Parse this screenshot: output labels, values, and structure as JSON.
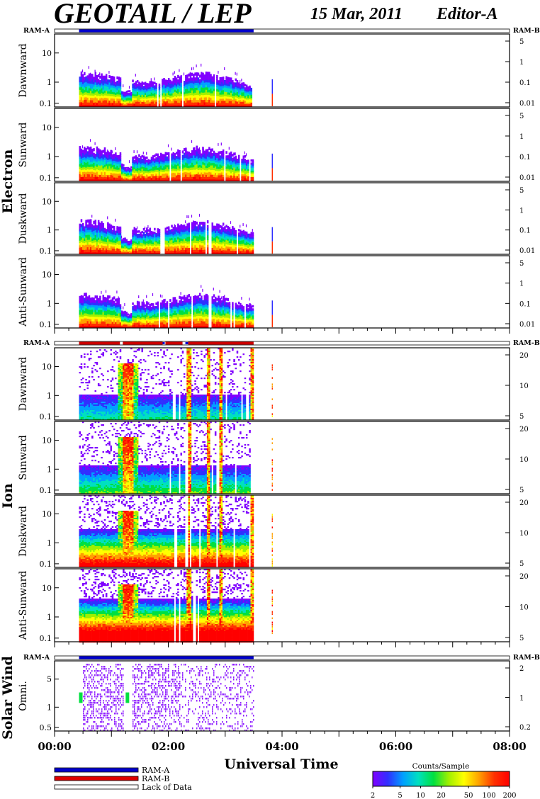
{
  "header": {
    "title": "GEOTAIL / LEP",
    "date": "15 Mar, 2011",
    "editor": "Editor-A"
  },
  "ram_labels": {
    "left": "RAM-A",
    "right": "RAM-B"
  },
  "groups": [
    {
      "name": "Electron",
      "panels": [
        "Dawnward",
        "Sunward",
        "Duskward",
        "Anti-Sunward"
      ]
    },
    {
      "name": "Ion",
      "panels": [
        "Dawnward",
        "Sunward",
        "Duskward",
        "Anti-Sunward"
      ]
    },
    {
      "name": "Solar Wind",
      "panels": [
        "Omni."
      ]
    }
  ],
  "axes": {
    "left_ticks_main": [
      "10",
      "1",
      "0.1"
    ],
    "electron_right_ticks": [
      "5",
      "1",
      "0.1",
      "0.01"
    ],
    "ion_right_ticks": [
      "20",
      "10",
      "5"
    ],
    "solar_left_ticks": [
      "5",
      "1",
      "0.5"
    ],
    "solar_right_ticks": [
      "2",
      "1",
      "0.2"
    ],
    "x_ticks": [
      "00:00",
      "02:00",
      "04:00",
      "06:00",
      "08:00"
    ],
    "x_label": "Universal Time"
  },
  "legend": {
    "items": [
      {
        "label": "RAM-A",
        "color": "#0000cc"
      },
      {
        "label": "RAM-B",
        "color": "#dd0000"
      },
      {
        "label": "Lack of Data",
        "color": "#ffffff"
      }
    ]
  },
  "colorbar": {
    "title": "Counts/Sample",
    "ticks": [
      "2",
      "5",
      "10",
      "20",
      "50",
      "100",
      "200"
    ],
    "colors": [
      "#8000ff",
      "#3030ff",
      "#00a0ff",
      "#00e0c0",
      "#00e040",
      "#a0f000",
      "#ffff00",
      "#ffa000",
      "#ff3000",
      "#ff0000"
    ]
  },
  "chart_data": {
    "type": "heatmap",
    "x_range_hours": [
      0,
      8
    ],
    "data_coverage_hours": [
      0.43,
      3.5
    ],
    "isolated_spike_hours": [
      3.82
    ],
    "ram_a_coverage_hours": [
      0.43,
      3.5
    ],
    "electron_flux_dip_hour": 1.25,
    "ion_enhancement_hours": [
      1.1,
      1.45
    ]
  }
}
